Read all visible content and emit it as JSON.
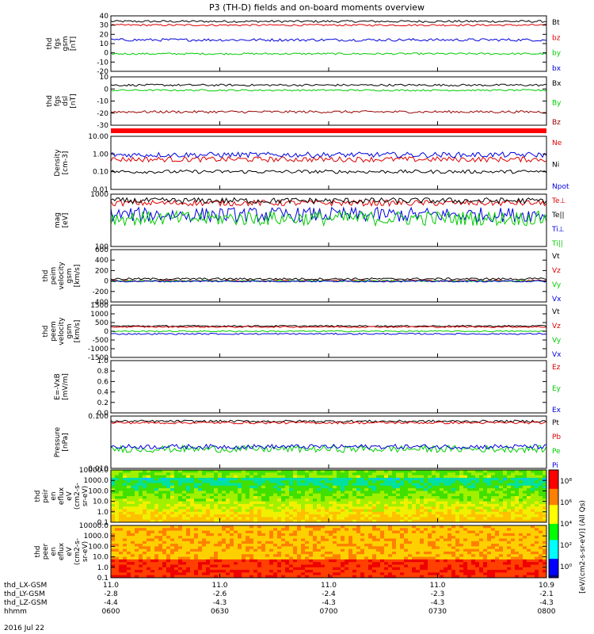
{
  "title": "P3 (TH-D) fields and on-board moments overview",
  "date_label": "2016 Jul 22",
  "colors": {
    "black": "#000000",
    "red": "#dd0000",
    "green": "#00cc00",
    "blue": "#0000dd",
    "darkred": "#990000"
  },
  "x_axis": {
    "row_labels": [
      "thd_LX-GSM",
      "thd_LY-GSM",
      "thd_LZ-GSM",
      "hhmm"
    ],
    "ticks": [
      {
        "time": "0600",
        "lx": "11.0",
        "ly": "-2.8",
        "lz": "-4.4"
      },
      {
        "time": "0630",
        "lx": "11.0",
        "ly": "-2.6",
        "lz": "-4.3"
      },
      {
        "time": "0700",
        "lx": "11.0",
        "ly": "-2.4",
        "lz": "-4.3"
      },
      {
        "time": "0730",
        "lx": "11.0",
        "ly": "-2.3",
        "lz": "-4.3"
      },
      {
        "time": "0800",
        "lx": "10.9",
        "ly": "-2.1",
        "lz": "-4.3"
      }
    ],
    "xlim": [
      "06:00",
      "08:00"
    ]
  },
  "chart_data": [
    {
      "id": "p1",
      "type": "line",
      "ylabel": [
        "thd",
        "fgs",
        "gsm",
        "[nT]"
      ],
      "ylim": [
        -20,
        40
      ],
      "y_ticks": [
        "40",
        "30",
        "20",
        "10",
        "0",
        "-10",
        "-20"
      ],
      "series": [
        {
          "name": "Bt",
          "color": "#000000",
          "baseline": 34,
          "noise": 1.2
        },
        {
          "name": "bz",
          "color": "#dd0000",
          "baseline": 30,
          "noise": 1.0
        },
        {
          "name": "by",
          "color": "#00cc00",
          "baseline": -1,
          "noise": 1.0
        },
        {
          "name": "bx",
          "color": "#0000dd",
          "baseline": 14,
          "noise": 1.5
        }
      ]
    },
    {
      "id": "p2",
      "type": "line",
      "ylabel": [
        "thd",
        "fgs",
        "dsl",
        "[nT]"
      ],
      "ylim": [
        -35,
        12
      ],
      "y_ticks": [
        "10",
        "0",
        "-10",
        "-20",
        "-30"
      ],
      "series": [
        {
          "name": "Bx",
          "color": "#000000",
          "baseline": 4,
          "noise": 1.0
        },
        {
          "name": "By",
          "color": "#00cc00",
          "baseline": -1,
          "noise": 0.8
        },
        {
          "name": "Bz",
          "color": "#990000",
          "baseline": -22,
          "noise": 1.2
        }
      ]
    },
    {
      "id": "p3",
      "type": "line",
      "ylabel": [
        "Density",
        "[cm-3]"
      ],
      "ylim": [
        0.01,
        10
      ],
      "log": true,
      "y_ticks": [
        "10.00",
        "1.00",
        "0.10",
        "0.01"
      ],
      "series": [
        {
          "name": "Ne",
          "color": "#dd0000",
          "baseline": 0.5,
          "noise": 0.15
        },
        {
          "name": "Ni",
          "color": "#000000",
          "baseline": 0.1,
          "noise": 0.1
        },
        {
          "name": "Npot",
          "color": "#0000dd",
          "baseline": 0.9,
          "noise": 0.15
        }
      ]
    },
    {
      "id": "p4",
      "type": "line",
      "ylabel": [
        "mag",
        "[eV]"
      ],
      "ylim": [
        50,
        3000
      ],
      "log": true,
      "y_ticks": [
        "1000",
        "100"
      ],
      "series": [
        {
          "name": "Te⊥",
          "color": "#dd0000",
          "baseline": 1500,
          "noise": 0.1
        },
        {
          "name": "Te||",
          "color": "#000000",
          "baseline": 1800,
          "noise": 0.1
        },
        {
          "name": "Ti⊥",
          "color": "#0000dd",
          "baseline": 600,
          "noise": 0.25
        },
        {
          "name": "Ti||",
          "color": "#00cc00",
          "baseline": 450,
          "noise": 0.25
        }
      ]
    },
    {
      "id": "p5",
      "type": "line",
      "ylabel": [
        "thd",
        "peim",
        "velocity",
        "gsm",
        "[km/s]"
      ],
      "ylim": [
        -400,
        600
      ],
      "y_ticks": [
        "600",
        "400",
        "200",
        "0",
        "-200",
        "-400"
      ],
      "series": [
        {
          "name": "Vt",
          "color": "#000000",
          "baseline": 40,
          "noise": 20
        },
        {
          "name": "Vz",
          "color": "#dd0000",
          "baseline": 5,
          "noise": 15
        },
        {
          "name": "Vy",
          "color": "#00cc00",
          "baseline": 0,
          "noise": 15
        },
        {
          "name": "Vx",
          "color": "#0000dd",
          "baseline": -5,
          "noise": 15
        }
      ]
    },
    {
      "id": "p6",
      "type": "line",
      "ylabel": [
        "thd",
        "peem",
        "velocity",
        "gsm",
        "[km/s]"
      ],
      "ylim": [
        -1500,
        1500
      ],
      "y_ticks": [
        "1500",
        "1000",
        "500",
        "0",
        "-500",
        "-1000",
        "-1500"
      ],
      "series": [
        {
          "name": "Vt",
          "color": "#000000",
          "baseline": 300,
          "noise": 40
        },
        {
          "name": "Vz",
          "color": "#dd0000",
          "baseline": 250,
          "noise": 40
        },
        {
          "name": "Vy",
          "color": "#00cc00",
          "baseline": 0,
          "noise": 40
        },
        {
          "name": "Vx",
          "color": "#0000dd",
          "baseline": -150,
          "noise": 40
        }
      ]
    },
    {
      "id": "p7",
      "type": "line",
      "ylabel": [
        "E=-VxB",
        "[mV/m]"
      ],
      "ylim": [
        0,
        1
      ],
      "y_ticks": [
        "1.0",
        "0.8",
        "0.6",
        "0.4",
        "0.2",
        "0.0"
      ],
      "series": [
        {
          "name": "Ez",
          "color": "#dd0000"
        },
        {
          "name": "Ey",
          "color": "#00cc00"
        },
        {
          "name": "Ex",
          "color": "#0000dd"
        }
      ]
    },
    {
      "id": "p8",
      "type": "line",
      "ylabel": [
        "Pressure",
        "[nPa]"
      ],
      "ylim": [
        0.003,
        0.5
      ],
      "log": true,
      "y_ticks": [
        "0.100",
        "0.010"
      ],
      "series": [
        {
          "name": "Pt",
          "color": "#000000",
          "baseline": 0.3,
          "noise": 0.05
        },
        {
          "name": "Pb",
          "color": "#dd0000",
          "baseline": 0.26,
          "noise": 0.05
        },
        {
          "name": "Pe",
          "color": "#00cc00",
          "baseline": 0.02,
          "noise": 0.15
        },
        {
          "name": "Pi",
          "color": "#0000dd",
          "baseline": 0.025,
          "noise": 0.1
        }
      ]
    },
    {
      "id": "p9",
      "type": "heatmap",
      "ylabel": [
        "thd",
        "peir",
        "en",
        "eflux",
        "eV",
        "(cm2-s-",
        "sr-eV)"
      ],
      "ylim": [
        0.1,
        10000
      ],
      "log": true,
      "y_ticks": [
        "10000.0",
        "1000.0",
        "100.0",
        "10.0",
        "1.0",
        "0.1"
      ]
    },
    {
      "id": "p10",
      "type": "heatmap",
      "ylabel": [
        "thd",
        "peer",
        "en",
        "eflux",
        "eV",
        "(cm2-s-",
        "sr-eV)"
      ],
      "ylim": [
        0.1,
        10000
      ],
      "log": true,
      "y_ticks": [
        "10000.0",
        "1000.0",
        "100.0",
        "10.0",
        "1.0",
        "0.1"
      ]
    }
  ],
  "colorbar": {
    "label": "[eV/(cm2-s-sr-eV)] (All Qs)",
    "ticks": [
      "10⁸",
      "10⁶",
      "10⁴",
      "10²",
      "10⁰"
    ]
  }
}
